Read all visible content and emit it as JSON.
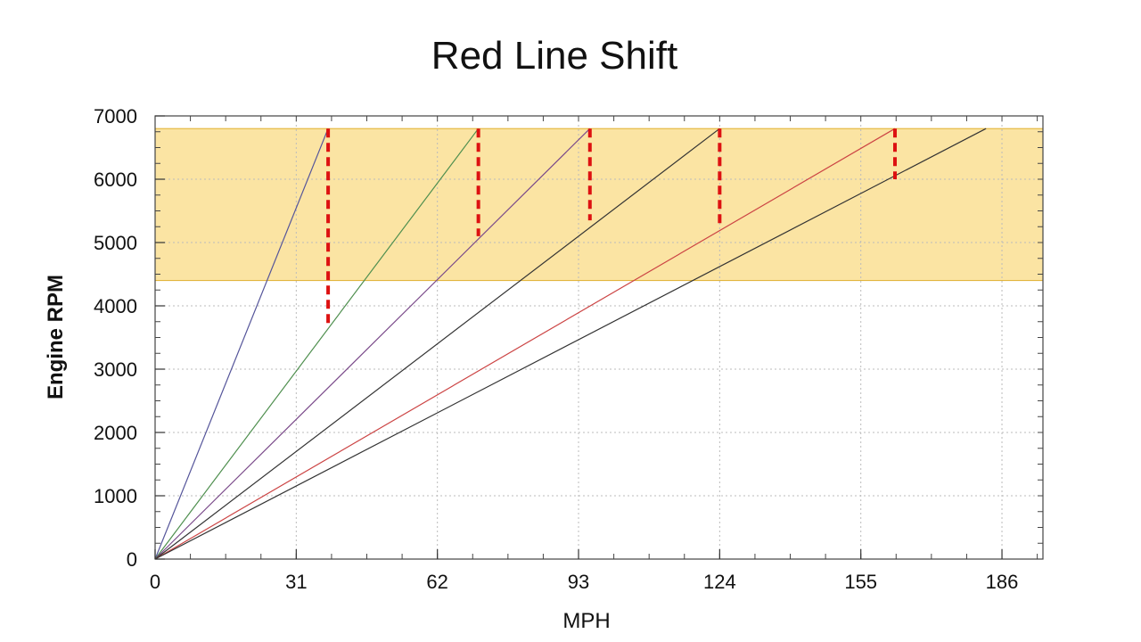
{
  "slide": {
    "title": "Red Line Shift"
  },
  "chart_data": {
    "type": "line",
    "title": "Red Line Shift",
    "xlabel": "MPH",
    "ylabel": "Engine RPM",
    "xlim": [
      0,
      195
    ],
    "ylim": [
      0,
      7000
    ],
    "xticks": [
      0,
      31,
      62,
      93,
      124,
      155,
      186
    ],
    "yticks": [
      0,
      1000,
      2000,
      3000,
      4000,
      5000,
      6000,
      7000
    ],
    "grid": true,
    "shaded_band": {
      "y_from": 4400,
      "y_to": 6800,
      "color": "#f7c948"
    },
    "series": [
      {
        "color": "#55559a",
        "points": [
          [
            0,
            0
          ],
          [
            38,
            6800
          ]
        ]
      },
      {
        "color": "#4f8f4f",
        "points": [
          [
            0,
            0
          ],
          [
            71,
            6800
          ]
        ]
      },
      {
        "color": "#7a4a8a",
        "points": [
          [
            0,
            0
          ],
          [
            95.5,
            6800
          ]
        ]
      },
      {
        "color": "#333333",
        "points": [
          [
            0,
            0
          ],
          [
            124,
            6800
          ]
        ]
      },
      {
        "color": "#cc4444",
        "points": [
          [
            0,
            0
          ],
          [
            162.5,
            6800
          ]
        ]
      },
      {
        "color": "#333333",
        "points": [
          [
            0,
            0
          ],
          [
            182.5,
            6800
          ]
        ]
      }
    ],
    "shift_markers": [
      {
        "x": 38,
        "y_top": 6800,
        "y_bottom": 3650
      },
      {
        "x": 71,
        "y_top": 6800,
        "y_bottom": 5100
      },
      {
        "x": 95.5,
        "y_top": 6800,
        "y_bottom": 5350
      },
      {
        "x": 124,
        "y_top": 6800,
        "y_bottom": 5250
      },
      {
        "x": 162.5,
        "y_top": 6800,
        "y_bottom": 6000
      }
    ],
    "marker_color": "#dd1111"
  }
}
